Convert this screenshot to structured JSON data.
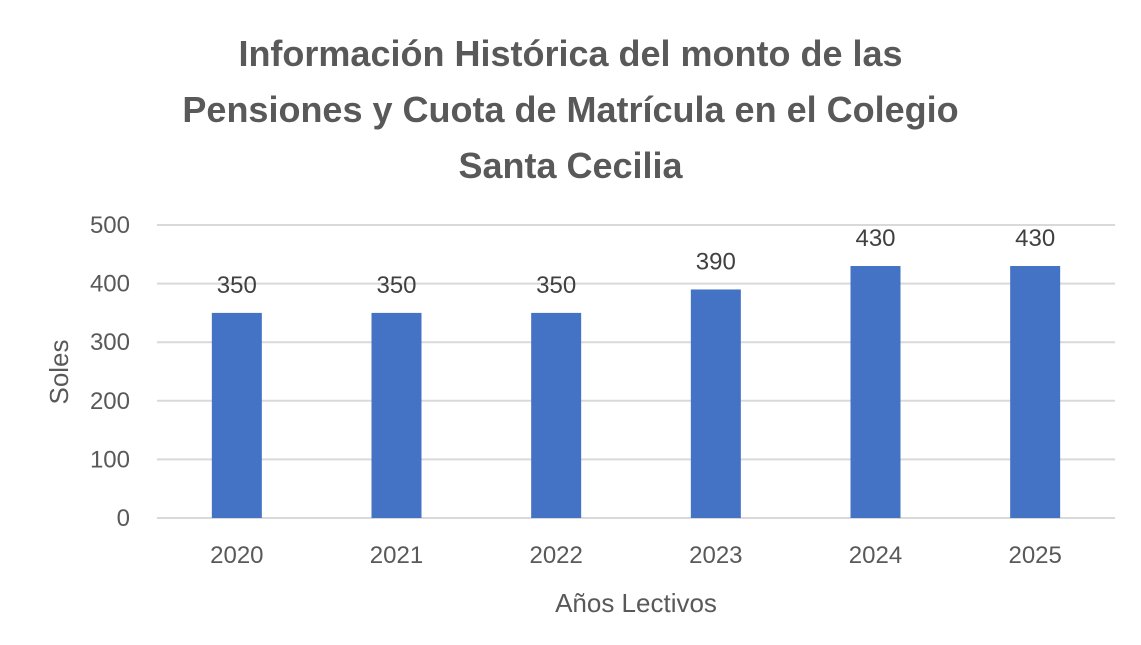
{
  "chart_data": {
    "type": "bar",
    "title_lines": [
      "Información Histórica del monto de las",
      "Pensiones y Cuota de Matrícula  en el Colegio",
      "Santa Cecilia"
    ],
    "categories": [
      "2020",
      "2021",
      "2022",
      "2023",
      "2024",
      "2025"
    ],
    "values": [
      350,
      350,
      350,
      390,
      430,
      430
    ],
    "xlabel": "Años Lectivos",
    "ylabel": "Soles",
    "ylim": [
      0,
      500
    ],
    "yticks": [
      0,
      100,
      200,
      300,
      400,
      500
    ],
    "grid": true,
    "data_labels": true,
    "bar_color": "#4472C4",
    "grid_color": "#D9D9D9",
    "text_color": "#595959"
  }
}
